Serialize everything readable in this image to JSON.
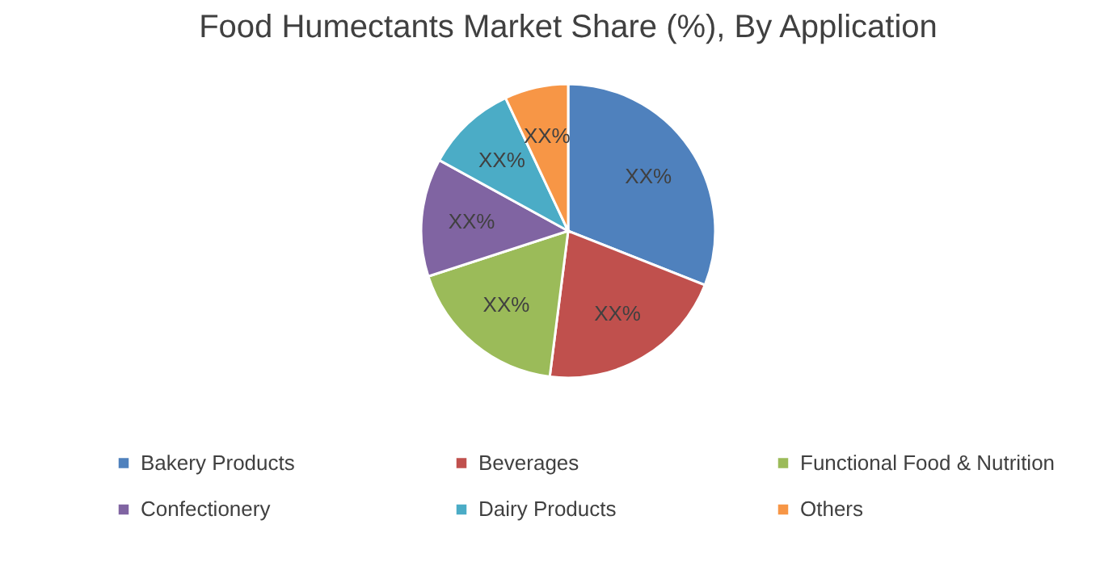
{
  "chart_data": {
    "type": "pie",
    "title": "Food Humectants Market Share (%), By Application",
    "categories": [
      "Bakery Products",
      "Beverages",
      "Functional Food & Nutrition",
      "Confectionery",
      "Dairy Products",
      "Others"
    ],
    "values": [
      31,
      21,
      18,
      13,
      10,
      7
    ],
    "colors": [
      "#4f81bd",
      "#c0504d",
      "#9bbb59",
      "#8064a2",
      "#4bacc6",
      "#f79646"
    ],
    "value_labels": [
      "XX%",
      "XX%",
      "XX%",
      "XX%",
      "XX%",
      "XX%"
    ],
    "legend": "bottom"
  }
}
